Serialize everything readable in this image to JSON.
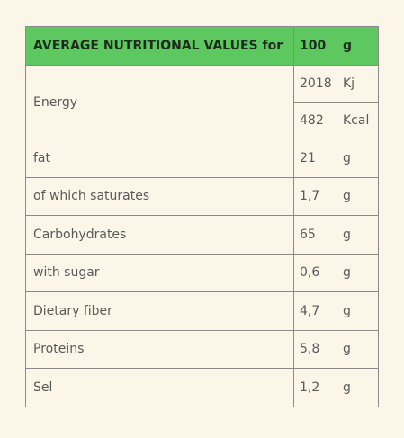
{
  "table": {
    "header": [
      "AVERAGE NUTRITIONAL VALUES for",
      "100",
      "g"
    ],
    "energy": {
      "label": "Energy",
      "rows": [
        [
          "2018",
          "Kj"
        ],
        [
          "482",
          "Kcal"
        ]
      ]
    },
    "rows": [
      [
        "fat",
        "21",
        "g"
      ],
      [
        "of which saturates",
        "1,7",
        "g"
      ],
      [
        "Carbohydrates",
        "65",
        "g"
      ],
      [
        "with sugar",
        "0,6",
        "g"
      ],
      [
        "Dietary fiber",
        "4,7",
        "g"
      ],
      [
        "Proteins",
        "5,8",
        "g"
      ],
      [
        "Sel",
        "1,2",
        "g"
      ]
    ]
  }
}
